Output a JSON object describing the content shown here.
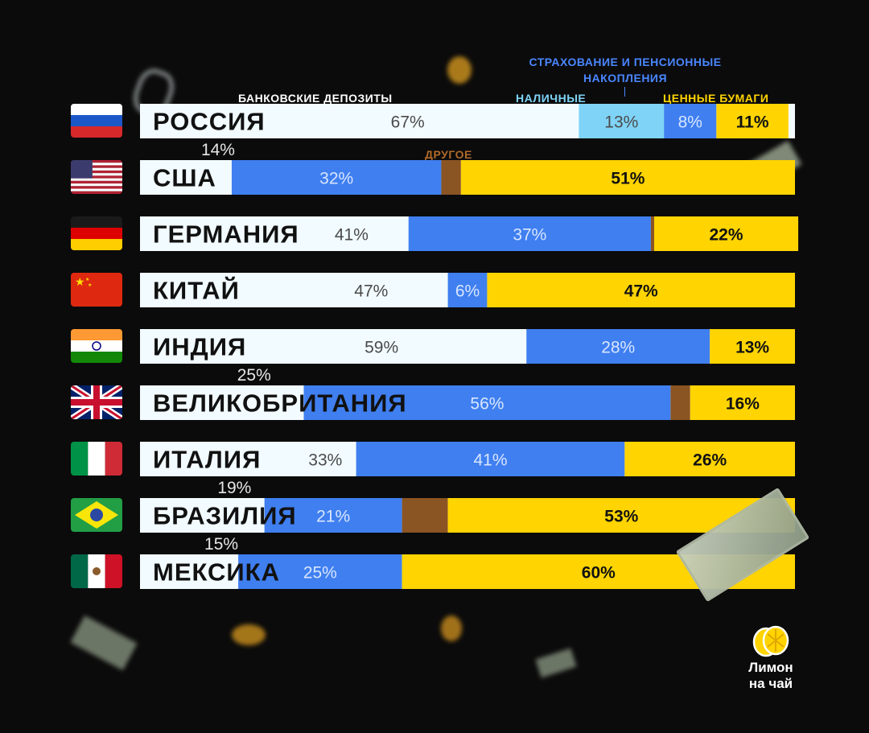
{
  "legend": {
    "deposits": "БАНКОВСКИЕ ДЕПОЗИТЫ",
    "cash": "НАЛИЧНЫЕ",
    "insurance": "СТРАХОВАНИЕ И ПЕНСИОННЫЕ НАКОПЛЕНИЯ",
    "securities": "ЦЕННЫЕ БУМАГИ",
    "other": "ДРУГОЕ"
  },
  "colors": {
    "deposits": "#f2fbff",
    "cash": "#7fd3f7",
    "insurance": "#3f7ff0",
    "other": "#8b5423",
    "securities": "#ffd400",
    "label_dark": "#4a4a4a",
    "label_light": "#d8e6ff",
    "label_bold": "#111111"
  },
  "logo": {
    "line1": "Лимон",
    "line2": "на чай"
  },
  "chart_data": {
    "type": "stacked-bar-horizontal",
    "title": "",
    "xlabel": "",
    "ylabel": "",
    "xlim": [
      0,
      100
    ],
    "series_order": [
      "deposits",
      "cash",
      "insurance",
      "other",
      "securities"
    ],
    "rows": [
      {
        "country": "РОССИЯ",
        "flag": "ru",
        "segments": [
          {
            "series": "deposits",
            "value": 67,
            "label": "67%"
          },
          {
            "series": "cash",
            "value": 13,
            "label": "13%"
          },
          {
            "series": "insurance",
            "value": 8,
            "label": "8%"
          },
          {
            "series": "securities",
            "value": 11,
            "label": "11%"
          }
        ]
      },
      {
        "country": "США",
        "flag": "us",
        "segments": [
          {
            "series": "deposits",
            "value": 14,
            "label": "14%",
            "outside": true
          },
          {
            "series": "insurance",
            "value": 32,
            "label": "32%"
          },
          {
            "series": "other",
            "value": 3,
            "label": ""
          },
          {
            "series": "securities",
            "value": 51,
            "label": "51%"
          }
        ]
      },
      {
        "country": "ГЕРМАНИЯ",
        "flag": "de",
        "segments": [
          {
            "series": "deposits",
            "value": 41,
            "label": "41%"
          },
          {
            "series": "insurance",
            "value": 37,
            "label": "37%"
          },
          {
            "series": "other",
            "value": 0.5,
            "label": ""
          },
          {
            "series": "securities",
            "value": 22,
            "label": "22%"
          }
        ]
      },
      {
        "country": "КИТАЙ",
        "flag": "cn",
        "segments": [
          {
            "series": "deposits",
            "value": 47,
            "label": "47%"
          },
          {
            "series": "insurance",
            "value": 6,
            "label": "6%"
          },
          {
            "series": "securities",
            "value": 47,
            "label": "47%"
          }
        ]
      },
      {
        "country": "ИНДИЯ",
        "flag": "in",
        "segments": [
          {
            "series": "deposits",
            "value": 59,
            "label": "59%"
          },
          {
            "series": "insurance",
            "value": 28,
            "label": "28%"
          },
          {
            "series": "securities",
            "value": 13,
            "label": "13%"
          }
        ]
      },
      {
        "country": "ВЕЛИКОБРИТАНИЯ",
        "flag": "gb",
        "segments": [
          {
            "series": "deposits",
            "value": 25,
            "label": "25%",
            "outside": true
          },
          {
            "series": "insurance",
            "value": 56,
            "label": "56%"
          },
          {
            "series": "other",
            "value": 3,
            "label": ""
          },
          {
            "series": "securities",
            "value": 16,
            "label": "16%"
          }
        ]
      },
      {
        "country": "ИТАЛИЯ",
        "flag": "it",
        "segments": [
          {
            "series": "deposits",
            "value": 33,
            "label": "33%"
          },
          {
            "series": "insurance",
            "value": 41,
            "label": "41%"
          },
          {
            "series": "securities",
            "value": 26,
            "label": "26%"
          }
        ]
      },
      {
        "country": "БРАЗИЛИЯ",
        "flag": "br",
        "segments": [
          {
            "series": "deposits",
            "value": 19,
            "label": "19%",
            "outside": true
          },
          {
            "series": "insurance",
            "value": 21,
            "label": "21%"
          },
          {
            "series": "other",
            "value": 7,
            "label": ""
          },
          {
            "series": "securities",
            "value": 53,
            "label": "53%"
          }
        ]
      },
      {
        "country": "МЕКСИКА",
        "flag": "mx",
        "segments": [
          {
            "series": "deposits",
            "value": 15,
            "label": "15%",
            "outside": true
          },
          {
            "series": "insurance",
            "value": 25,
            "label": "25%"
          },
          {
            "series": "securities",
            "value": 60,
            "label": "60%"
          }
        ]
      }
    ]
  }
}
